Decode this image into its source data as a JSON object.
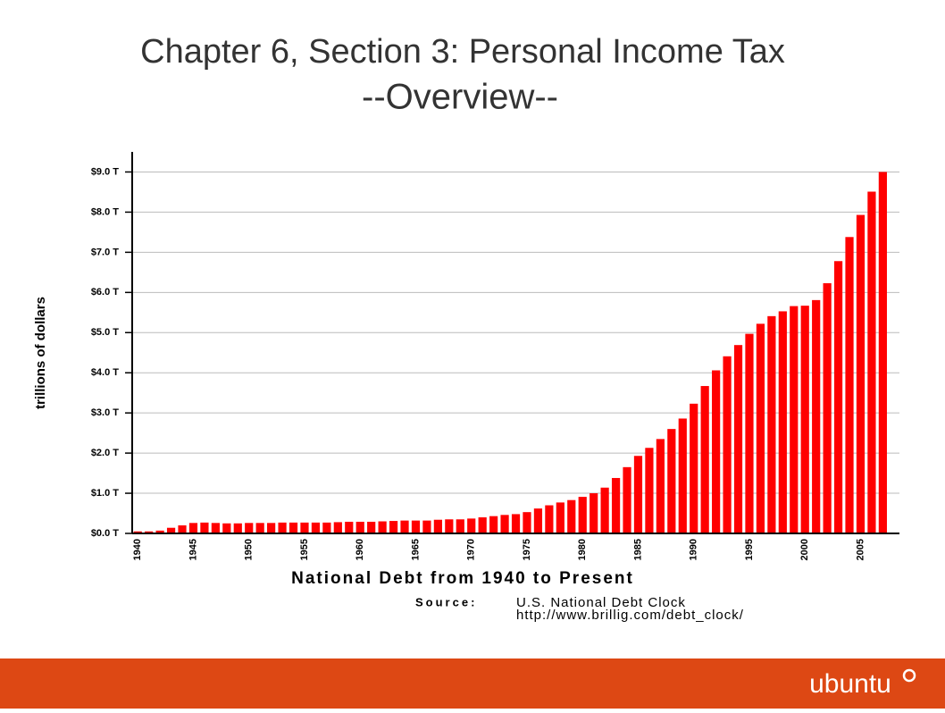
{
  "chart_data": {
    "type": "bar",
    "title": "Chapter 6, Section 3:  Personal Income Tax",
    "subtitle": "--Overview--",
    "y_label": "trillions of dollars",
    "x_label": "National Debt from 1940 to Present",
    "source_label": "Source:",
    "source": "U.S. National Debt Clock",
    "source_url": "http://www.brillig.com/debt_clock/",
    "footer": "ubuntu",
    "color": "#ff0000",
    "grid": true,
    "categories": [
      "1940",
      null,
      null,
      null,
      null,
      "1945",
      null,
      null,
      null,
      null,
      "1950",
      null,
      null,
      null,
      null,
      "1955",
      null,
      null,
      null,
      null,
      "1960",
      null,
      null,
      null,
      null,
      "1965",
      null,
      null,
      null,
      null,
      "1970",
      null,
      null,
      null,
      null,
      "1975",
      null,
      null,
      null,
      null,
      "1980",
      null,
      null,
      null,
      null,
      "1985",
      null,
      null,
      null,
      null,
      "1990",
      null,
      null,
      null,
      null,
      "1995",
      null,
      null,
      null,
      null,
      "2000",
      null,
      null,
      null,
      null,
      "2005",
      null,
      null
    ],
    "values": [
      0.05,
      0.05,
      0.07,
      0.14,
      0.2,
      0.26,
      0.27,
      0.26,
      0.25,
      0.25,
      0.26,
      0.26,
      0.26,
      0.27,
      0.27,
      0.27,
      0.27,
      0.27,
      0.28,
      0.29,
      0.29,
      0.29,
      0.3,
      0.31,
      0.32,
      0.32,
      0.32,
      0.34,
      0.35,
      0.35,
      0.37,
      0.4,
      0.43,
      0.46,
      0.48,
      0.53,
      0.62,
      0.7,
      0.77,
      0.83,
      0.91,
      1.0,
      1.14,
      1.38,
      1.65,
      1.93,
      2.13,
      2.35,
      2.6,
      2.86,
      3.23,
      3.67,
      4.06,
      4.41,
      4.69,
      4.97,
      5.22,
      5.41,
      5.53,
      5.66,
      5.67,
      5.81,
      6.23,
      6.78,
      7.38,
      7.93,
      8.51,
      9.0
    ],
    "ylim": [
      0,
      9.5
    ],
    "yticks": [
      {
        "value": 0,
        "label": "$0.0 T"
      },
      {
        "value": 1,
        "label": "$1.0 T"
      },
      {
        "value": 2,
        "label": "$2.0 T"
      },
      {
        "value": 3,
        "label": "$3.0 T"
      },
      {
        "value": 4,
        "label": "$4.0 T"
      },
      {
        "value": 5,
        "label": "$5.0 T"
      },
      {
        "value": 6,
        "label": "$6.0 T"
      },
      {
        "value": 7,
        "label": "$7.0 T"
      },
      {
        "value": 8,
        "label": "$8.0 T"
      },
      {
        "value": 9,
        "label": "$9.0 T"
      }
    ]
  }
}
